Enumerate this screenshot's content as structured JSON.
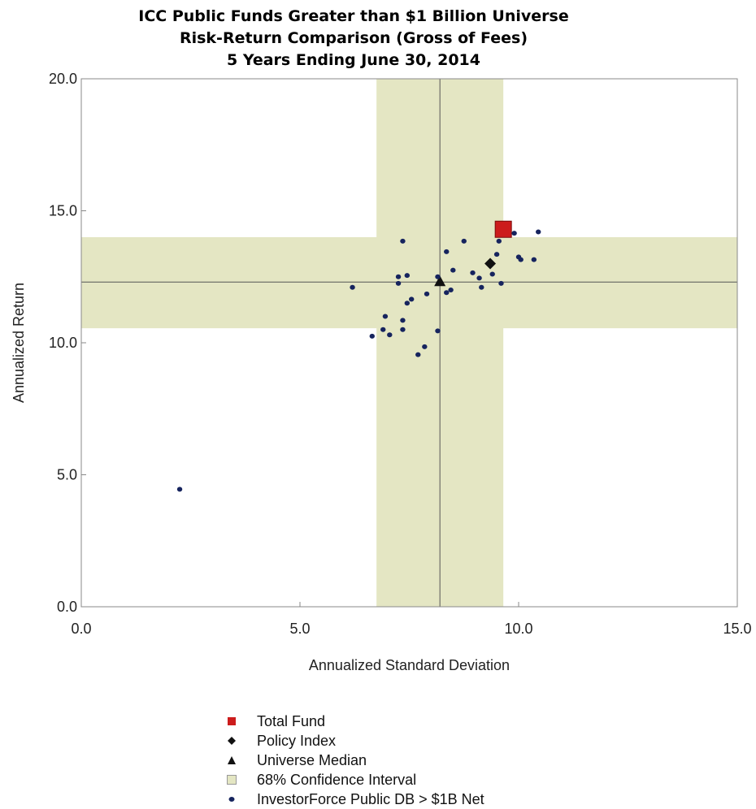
{
  "titles": [
    "ICC Public Funds Greater than $1 Billion Universe",
    "Risk-Return Comparison (Gross of Fees)",
    "5 Years Ending June 30, 2014"
  ],
  "colors": {
    "band": "#e4e6c3",
    "total_fund": "#cc1c1c",
    "marker": "#111111",
    "universe_dot": "#16245e",
    "axis": "#888888",
    "median_line": "#555555"
  },
  "chart_data": {
    "type": "scatter",
    "title": "ICC Public Funds Greater than $1 Billion Universe\nRisk-Return Comparison (Gross of Fees)\n5 Years Ending June 30, 2014",
    "xlabel": "Annualized Standard Deviation",
    "ylabel": "Annualized Return",
    "xlim": [
      0,
      15
    ],
    "ylim": [
      0,
      20
    ],
    "x_ticks": [
      "0.0",
      "5.0",
      "10.0",
      "15.0"
    ],
    "y_ticks": [
      "0.0",
      "5.0",
      "10.0",
      "15.0",
      "20.0"
    ],
    "grid": false,
    "legend_position": "bottom",
    "confidence_interval": {
      "x": [
        6.75,
        9.65
      ],
      "y": [
        10.55,
        14.0
      ]
    },
    "median_lines": {
      "x": 8.2,
      "y": 12.3
    },
    "series": [
      {
        "name": "Total Fund",
        "marker": "square",
        "points": [
          [
            9.65,
            14.3
          ]
        ]
      },
      {
        "name": "Policy Index",
        "marker": "diamond",
        "points": [
          [
            9.35,
            13.0
          ]
        ]
      },
      {
        "name": "Universe Median",
        "marker": "triangle",
        "points": [
          [
            8.2,
            12.3
          ]
        ]
      },
      {
        "name": "68% Confidence Interval",
        "marker": "band",
        "points": []
      },
      {
        "name": "InvestorForce Public DB > $1B Net",
        "marker": "dot",
        "points": [
          [
            2.25,
            4.45
          ],
          [
            6.2,
            12.1
          ],
          [
            6.65,
            10.25
          ],
          [
            6.9,
            10.5
          ],
          [
            6.95,
            11.0
          ],
          [
            7.05,
            10.3
          ],
          [
            7.25,
            12.5
          ],
          [
            7.25,
            12.25
          ],
          [
            7.35,
            13.85
          ],
          [
            7.35,
            10.85
          ],
          [
            7.35,
            10.5
          ],
          [
            7.45,
            11.5
          ],
          [
            7.45,
            12.55
          ],
          [
            7.55,
            11.65
          ],
          [
            7.7,
            9.55
          ],
          [
            7.85,
            9.85
          ],
          [
            7.9,
            11.85
          ],
          [
            8.15,
            10.45
          ],
          [
            8.15,
            12.5
          ],
          [
            8.35,
            11.9
          ],
          [
            8.35,
            13.45
          ],
          [
            8.45,
            12.0
          ],
          [
            8.5,
            12.75
          ],
          [
            8.75,
            13.85
          ],
          [
            8.95,
            12.65
          ],
          [
            9.1,
            12.45
          ],
          [
            9.15,
            12.1
          ],
          [
            9.4,
            12.6
          ],
          [
            9.5,
            13.35
          ],
          [
            9.55,
            13.85
          ],
          [
            9.6,
            12.25
          ],
          [
            9.9,
            14.15
          ],
          [
            10.0,
            13.25
          ],
          [
            10.05,
            13.15
          ],
          [
            10.35,
            13.15
          ],
          [
            10.45,
            14.2
          ]
        ]
      }
    ]
  }
}
